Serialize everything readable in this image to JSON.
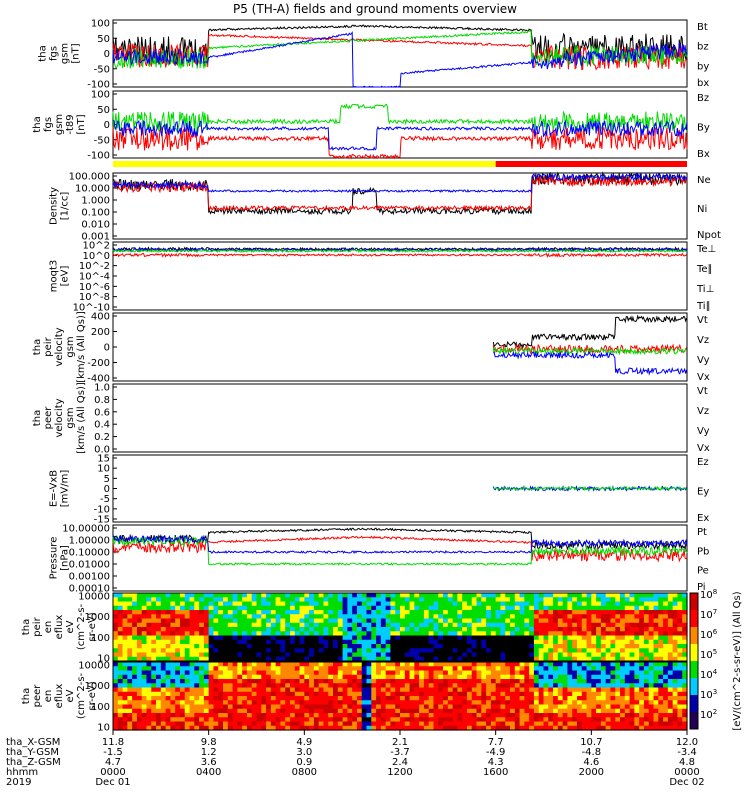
{
  "title": "P5 (TH-A) fields and ground moments overview",
  "colors": {
    "black": "#000000",
    "red": "#ff0000",
    "green": "#00dd00",
    "blue": "#0000ff",
    "yellow": "#ffff00"
  },
  "chart_data": {
    "type": "line",
    "title": "P5 (TH-A) fields and ground moments overview",
    "x_axis": {
      "range": [
        "2019 Dec 01 0000",
        "2019 Dec 02 0000"
      ],
      "rows": [
        {
          "label": "tha_X-GSM",
          "values": [
            "11.8",
            "9.8",
            "4.9",
            "2.1",
            "7.7",
            "10.7",
            "12.0"
          ]
        },
        {
          "label": "tha_Y-GSM",
          "values": [
            "-1.5",
            "1.2",
            "3.0",
            "-3.7",
            "-4.9",
            "-4.8",
            "-3.4"
          ]
        },
        {
          "label": "tha_Z-GSM",
          "values": [
            "4.7",
            "3.6",
            "0.9",
            "2.4",
            "4.3",
            "4.6",
            "4.8"
          ]
        },
        {
          "label": "hhmm",
          "values": [
            "0000",
            "0400",
            "0800",
            "1200",
            "1600",
            "2000",
            "0000"
          ]
        }
      ],
      "year": "2019",
      "date_start": "Dec 01",
      "date_end": "Dec 02"
    },
    "panels": [
      {
        "id": "p1",
        "ylabel": [
          "tha",
          "fgs",
          "gsm",
          "[nT]"
        ],
        "ticks": [
          "100",
          "50",
          "0",
          "-50",
          "-100"
        ],
        "legend": [
          {
            "name": "Bt",
            "color": "#000000"
          },
          {
            "name": "bz",
            "color": "#ff0000"
          },
          {
            "name": "by",
            "color": "#00dd00"
          },
          {
            "name": "bx",
            "color": "#0000ff"
          }
        ]
      },
      {
        "id": "p2",
        "ylabel": [
          "tha",
          "fgs",
          "gsm",
          "-t89",
          "[nT]"
        ],
        "ticks": [
          "100",
          "50",
          "0",
          "-50",
          "-100"
        ],
        "legend": [
          {
            "name": "Bz",
            "color": "#ff0000"
          },
          {
            "name": "By",
            "color": "#00dd00"
          },
          {
            "name": "Bx",
            "color": "#0000ff"
          }
        ]
      },
      {
        "id": "p3",
        "ylabel": [
          "Density",
          "[1/cc]"
        ],
        "ticks": [
          "100.000",
          "10.000",
          "1.000",
          "0.100",
          "0.010",
          "0.001"
        ],
        "legend": [
          {
            "name": "Ne",
            "color": "#ff0000"
          },
          {
            "name": "Ni",
            "color": "#000000"
          },
          {
            "name": "Npot",
            "color": "#0000ff"
          }
        ]
      },
      {
        "id": "p4",
        "ylabel": [
          "moqt3",
          "[eV]"
        ],
        "ticks": [
          "10^2",
          "10^0",
          "10^-2",
          "10^-4",
          "10^-6",
          "10^-8",
          "10^-10"
        ],
        "legend": [
          {
            "name": "Te⊥",
            "color": "#ff0000"
          },
          {
            "name": "Te∥",
            "color": "#000000"
          },
          {
            "name": "Ti⊥",
            "color": "#0000ff"
          },
          {
            "name": "Ti∥",
            "color": "#00dd00"
          }
        ]
      },
      {
        "id": "p5",
        "ylabel": [
          "tha",
          "peir",
          "velocity",
          "gsm",
          "[km/s (All Qs)]"
        ],
        "ticks": [
          "400",
          "200",
          "0",
          "-200",
          "-400"
        ],
        "legend": [
          {
            "name": "Vt",
            "color": "#000000"
          },
          {
            "name": "Vz",
            "color": "#ff0000"
          },
          {
            "name": "Vy",
            "color": "#00dd00"
          },
          {
            "name": "Vx",
            "color": "#0000ff"
          }
        ]
      },
      {
        "id": "p6",
        "ylabel": [
          "tha",
          "peer",
          "velocity",
          "gsm",
          "[km/s (All Qs)]"
        ],
        "ticks": [
          "1.0",
          "0.8",
          "0.6",
          "0.4",
          "0.2",
          "0.0"
        ],
        "legend": [
          {
            "name": "Vt",
            "color": "#000000"
          },
          {
            "name": "Vz",
            "color": "#ff0000"
          },
          {
            "name": "Vy",
            "color": "#00dd00"
          },
          {
            "name": "Vx",
            "color": "#0000ff"
          }
        ]
      },
      {
        "id": "p7",
        "ylabel": [
          "E=-VxB",
          "[mV/m]"
        ],
        "ticks": [
          "15",
          "10",
          "5",
          "0",
          "-5",
          "-10",
          "-15"
        ],
        "legend": [
          {
            "name": "Ez",
            "color": "#ff0000"
          },
          {
            "name": "Ey",
            "color": "#00dd00"
          },
          {
            "name": "Ex",
            "color": "#0000ff"
          }
        ]
      },
      {
        "id": "p8",
        "ylabel": [
          "Pressure",
          "[nPa]"
        ],
        "ticks": [
          "10.00000",
          "1.00000",
          "0.10000",
          "0.01000",
          "0.00100",
          "0.00010"
        ],
        "legend": [
          {
            "name": "Pt",
            "color": "#000000"
          },
          {
            "name": "Pb",
            "color": "#ff0000"
          },
          {
            "name": "Pe",
            "color": "#00dd00"
          },
          {
            "name": "Pi",
            "color": "#0000ff"
          }
        ]
      },
      {
        "id": "p9",
        "ylabel": [
          "tha",
          "peir",
          "en",
          "eflux",
          "eV",
          "(cm^2-s-",
          "sr-eV)"
        ],
        "ticks": [
          "10000",
          "1000",
          "100",
          "10"
        ]
      },
      {
        "id": "p10",
        "ylabel": [
          "tha",
          "peer",
          "en",
          "eflux",
          "eV",
          "(cm^2-s-",
          "sr-eV)"
        ],
        "ticks": [
          "10000",
          "1000",
          "100",
          "10"
        ]
      }
    ],
    "colorbar": {
      "ticks": [
        "10^8",
        "10^7",
        "10^6",
        "10^5",
        "10^4",
        "10^3",
        "10^2"
      ],
      "label": "[eV/(cm^2-s-sr-eV)]  (All Qs)"
    }
  }
}
